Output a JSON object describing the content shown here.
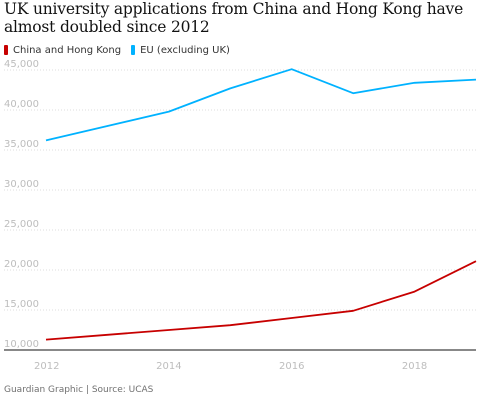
{
  "chart_data": {
    "type": "line",
    "title": "UK university applications from China and Hong Kong have almost doubled since 2012",
    "x": [
      2012,
      2013,
      2014,
      2015,
      2016,
      2017,
      2018,
      2019
    ],
    "x_ticks": [
      "2012",
      "2014",
      "2016",
      "2018"
    ],
    "y_ticks": [
      "10,000",
      "15,000",
      "20,000",
      "25,000",
      "30,000",
      "35,000",
      "40,000",
      "45,000"
    ],
    "ylim": [
      10000,
      45000
    ],
    "xlim": [
      2012,
      2019
    ],
    "grid": "horizontal",
    "legend_position": "top-left",
    "series": [
      {
        "name": "China and Hong Kong",
        "color": "#c70000",
        "values": [
          11300,
          11900,
          12500,
          13100,
          14000,
          14900,
          17300,
          21100
        ]
      },
      {
        "name": "EU (excluding UK)",
        "color": "#00b2ff",
        "values": [
          36200,
          38000,
          39800,
          42700,
          45100,
          42100,
          43400,
          43800
        ]
      }
    ]
  },
  "footer": {
    "source": "Guardian Graphic | Source: UCAS"
  }
}
